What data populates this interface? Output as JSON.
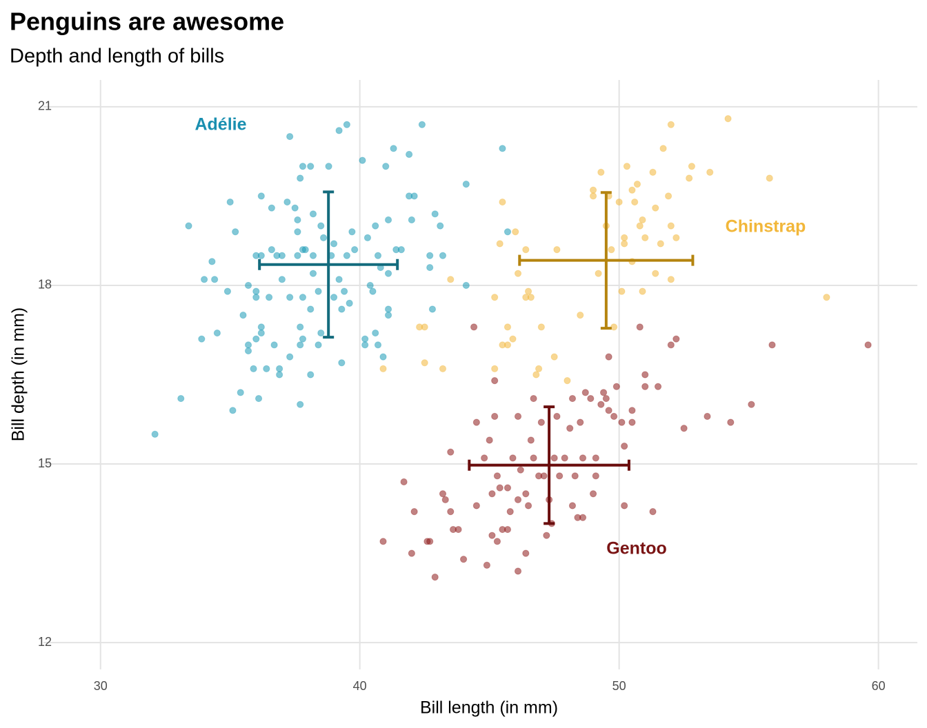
{
  "chart_data": {
    "type": "scatter",
    "title": "Penguins are awesome",
    "subtitle": "Depth and length of bills",
    "x_label": "Bill length (in mm)",
    "y_label": "Bill depth (in mm)",
    "xlim": [
      27.8,
      61.5
    ],
    "ylim": [
      11.55,
      21.45
    ],
    "xticks": [
      30,
      40,
      50,
      60
    ],
    "yticks": [
      12,
      15,
      18,
      21
    ],
    "grid": true,
    "series": [
      {
        "name": "Adélie",
        "color": "#1b9ab6",
        "errorbar_color": "#136b7d",
        "mean_x": 38.79,
        "mean_y": 18.35,
        "sd_x": 2.66,
        "sd_y": 1.22,
        "x": [
          32.1,
          33.1,
          33.4,
          33.9,
          34.0,
          34.3,
          34.4,
          34.5,
          35.0,
          35.1,
          35.2,
          34.9,
          35.4,
          35.5,
          35.7,
          35.7,
          35.7,
          35.9,
          36.0,
          36.0,
          36.0,
          36.0,
          36.1,
          36.2,
          36.2,
          36.2,
          36.2,
          36.4,
          36.5,
          36.6,
          36.6,
          36.7,
          36.8,
          36.9,
          36.9,
          37.0,
          37.0,
          37.2,
          37.3,
          37.3,
          37.5,
          37.6,
          37.6,
          37.6,
          37.7,
          37.7,
          37.7,
          37.7,
          37.8,
          37.8,
          37.8,
          37.8,
          37.9,
          38.1,
          38.1,
          38.1,
          38.2,
          38.2,
          38.2,
          38.4,
          38.4,
          38.5,
          38.5,
          38.6,
          38.8,
          39.0,
          39.0,
          38.9,
          39.2,
          39.2,
          39.3,
          39.3,
          39.4,
          39.5,
          39.5,
          39.6,
          39.7,
          39.8,
          40.1,
          40.2,
          40.2,
          40.3,
          40.4,
          40.5,
          40.6,
          40.6,
          40.7,
          40.7,
          40.8,
          40.9,
          41.0,
          41.1,
          41.1,
          41.1,
          41.1,
          41.3,
          41.4,
          41.6,
          41.9,
          41.9,
          42.0,
          42.1,
          42.4,
          42.7,
          42.8,
          42.9,
          43.1,
          42.7,
          43.2,
          44.1,
          44.1,
          37.3,
          45.5,
          45.7
        ],
        "values": [
          15.5,
          16.1,
          19.0,
          17.1,
          18.1,
          18.4,
          18.1,
          17.2,
          19.4,
          15.9,
          18.9,
          17.9,
          16.2,
          17.5,
          16.9,
          17.0,
          18.0,
          16.6,
          18.5,
          17.9,
          17.1,
          17.8,
          16.1,
          17.3,
          19.5,
          18.5,
          17.2,
          16.6,
          17.8,
          19.3,
          18.6,
          17.0,
          18.5,
          16.6,
          16.5,
          18.5,
          18.1,
          19.4,
          16.8,
          17.8,
          19.3,
          19.1,
          18.9,
          18.5,
          19.8,
          17.3,
          17.0,
          16.0,
          20.0,
          17.1,
          18.6,
          17.8,
          18.6,
          16.5,
          17.6,
          20.0,
          19.2,
          18.5,
          18.2,
          17.9,
          17.0,
          19.0,
          17.2,
          18.8,
          20.0,
          18.7,
          17.8,
          18.5,
          18.1,
          20.6,
          17.6,
          16.7,
          17.9,
          20.7,
          18.5,
          17.7,
          18.9,
          18.6,
          20.1,
          17.1,
          17.0,
          18.8,
          18.0,
          17.9,
          19.0,
          17.2,
          18.5,
          17.0,
          18.3,
          16.8,
          20.0,
          19.1,
          18.2,
          17.6,
          17.5,
          20.3,
          18.6,
          18.6,
          20.2,
          19.5,
          19.1,
          19.5,
          20.7,
          18.5,
          17.6,
          19.2,
          19.0,
          18.3,
          18.5,
          19.7,
          18.0,
          20.5,
          20.3,
          18.9
        ]
      },
      {
        "name": "Chinstrap",
        "color": "#f2b73a",
        "errorbar_color": "#b5840f",
        "mean_x": 49.5,
        "mean_y": 18.42,
        "sd_x": 3.34,
        "sd_y": 1.14,
        "x": [
          40.9,
          42.3,
          42.5,
          42.5,
          43.2,
          43.5,
          45.2,
          45.2,
          45.4,
          45.5,
          45.5,
          45.7,
          45.7,
          45.9,
          46.0,
          46.1,
          46.4,
          46.4,
          46.5,
          46.6,
          46.8,
          46.9,
          47.0,
          47.5,
          47.6,
          48.0,
          48.5,
          49.0,
          49.0,
          49.2,
          49.3,
          49.5,
          49.6,
          49.7,
          49.8,
          50.0,
          50.1,
          50.2,
          50.2,
          50.3,
          50.5,
          50.5,
          50.6,
          50.7,
          50.8,
          50.9,
          50.9,
          51.0,
          51.3,
          51.4,
          51.4,
          51.6,
          51.7,
          51.9,
          52.0,
          52.0,
          52.0,
          52.2,
          52.7,
          52.8,
          53.5,
          54.2,
          55.8,
          58.0
        ],
        "values": [
          16.6,
          17.3,
          17.3,
          16.7,
          16.6,
          18.1,
          17.8,
          16.6,
          18.7,
          19.4,
          17.0,
          17.3,
          17.0,
          17.1,
          18.9,
          18.2,
          18.6,
          17.8,
          17.9,
          17.8,
          16.5,
          16.6,
          17.3,
          16.8,
          18.6,
          16.4,
          17.5,
          19.5,
          19.6,
          18.2,
          19.9,
          19.0,
          19.5,
          18.6,
          17.3,
          19.4,
          17.9,
          18.7,
          18.8,
          20.0,
          19.6,
          18.4,
          19.4,
          19.7,
          19.0,
          19.1,
          17.9,
          18.8,
          19.9,
          19.3,
          18.2,
          18.7,
          20.3,
          19.5,
          19.0,
          20.7,
          18.1,
          18.8,
          19.8,
          20.0,
          19.9,
          20.8,
          19.8,
          17.8
        ]
      },
      {
        "name": "Gentoo",
        "color": "#8e1b1b",
        "errorbar_color": "#6a0d0d",
        "mean_x": 47.3,
        "mean_y": 14.98,
        "sd_x": 3.08,
        "sd_y": 0.98,
        "x": [
          40.9,
          41.7,
          42.0,
          42.1,
          42.6,
          42.7,
          42.9,
          43.2,
          43.3,
          43.5,
          43.5,
          43.6,
          43.8,
          44.0,
          44.4,
          44.5,
          44.5,
          44.8,
          44.9,
          45.0,
          45.1,
          45.1,
          45.2,
          45.2,
          45.3,
          45.3,
          45.4,
          45.5,
          45.7,
          45.7,
          45.8,
          45.9,
          46.1,
          46.1,
          46.1,
          46.2,
          46.4,
          46.4,
          46.5,
          46.6,
          46.7,
          46.7,
          46.9,
          47.0,
          47.1,
          47.2,
          47.3,
          47.4,
          47.5,
          47.6,
          47.7,
          47.9,
          48.1,
          48.2,
          48.2,
          48.3,
          48.4,
          48.5,
          48.6,
          48.6,
          48.7,
          48.9,
          49.0,
          49.1,
          49.1,
          49.3,
          49.4,
          49.5,
          49.6,
          49.6,
          49.8,
          49.9,
          50.1,
          50.2,
          50.2,
          50.5,
          50.5,
          50.8,
          51.0,
          51.0,
          51.3,
          51.5,
          52.0,
          52.2,
          52.5,
          53.4,
          54.3,
          55.1,
          55.9,
          59.6
        ],
        "values": [
          13.7,
          14.7,
          13.5,
          14.2,
          13.7,
          13.7,
          13.1,
          14.5,
          14.4,
          15.2,
          14.2,
          13.9,
          13.9,
          13.4,
          17.3,
          15.7,
          14.3,
          15.1,
          13.3,
          15.4,
          14.5,
          13.8,
          16.4,
          15.8,
          14.8,
          13.7,
          14.6,
          13.9,
          13.9,
          14.6,
          14.2,
          15.1,
          15.8,
          13.2,
          14.4,
          14.9,
          14.5,
          13.5,
          14.3,
          15.4,
          16.1,
          15.1,
          14.8,
          15.7,
          14.8,
          13.8,
          14.4,
          14.0,
          15.1,
          15.8,
          14.8,
          15.1,
          15.6,
          16.1,
          14.3,
          14.8,
          14.1,
          15.7,
          15.1,
          14.1,
          16.2,
          16.1,
          14.5,
          15.1,
          14.8,
          16.0,
          16.2,
          16.1,
          16.8,
          15.9,
          15.8,
          16.3,
          15.7,
          15.3,
          14.3,
          15.9,
          15.7,
          17.3,
          16.5,
          16.3,
          14.2,
          16.3,
          17.0,
          17.1,
          15.6,
          15.8,
          15.7,
          16.0,
          17.0,
          17.0
        ]
      }
    ]
  }
}
